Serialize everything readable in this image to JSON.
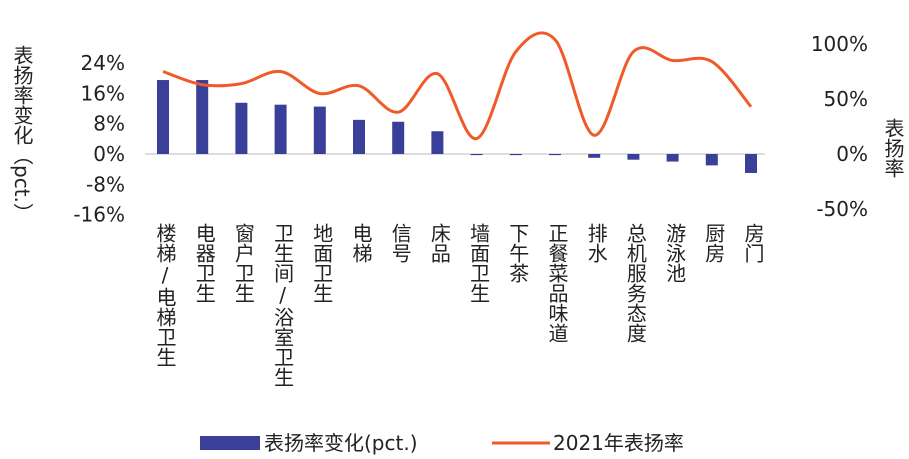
{
  "chart_data": {
    "type": "bar+line",
    "categories": [
      "楼梯/电梯卫生",
      "电器卫生",
      "窗户卫生",
      "卫生间/浴室卫生",
      "地面卫生",
      "电梯",
      "信号",
      "床品",
      "墙面卫生",
      "下午茶",
      "正餐菜品味道",
      "排水",
      "总机服务态度",
      "游泳池",
      "厨房",
      "房门"
    ],
    "series": [
      {
        "name": "表扬率变化(pct.)",
        "axis": "left",
        "kind": "bar",
        "color": "#3a3f9a",
        "values": [
          19.5,
          19.5,
          13.5,
          13,
          12.5,
          9,
          8.5,
          6,
          -0.3,
          -0.3,
          -0.3,
          -1,
          -1.5,
          -2,
          -3,
          -5
        ]
      },
      {
        "name": "2021年表扬率",
        "axis": "right",
        "kind": "line",
        "color": "#f05a28",
        "values": [
          75,
          63,
          64,
          75,
          55,
          62,
          38,
          73,
          14,
          93,
          104,
          17,
          93,
          85,
          84,
          43
        ]
      }
    ],
    "left_axis": {
      "label": "表扬率变化（pct.）",
      "ticks": [
        "24%",
        "16%",
        "8%",
        "0%",
        "-8%",
        "-16%"
      ],
      "ylim": [
        -16,
        24
      ]
    },
    "right_axis": {
      "label": "表扬率",
      "ticks": [
        "100%",
        "50%",
        "0%",
        "-50%"
      ],
      "ylim": [
        -50,
        100
      ]
    },
    "legend": {
      "position": "bottom",
      "items": [
        "表扬率变化(pct.)",
        "2021年表扬率"
      ]
    }
  }
}
